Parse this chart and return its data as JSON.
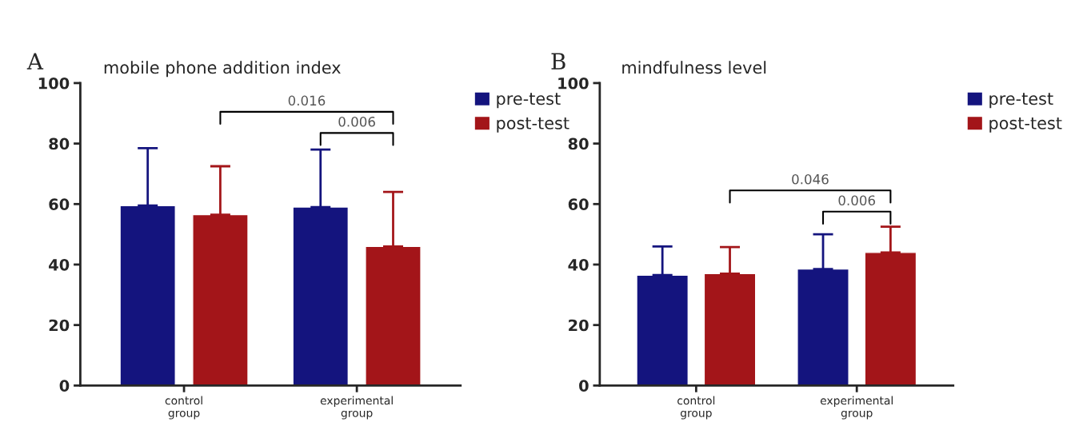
{
  "chart_data": [
    {
      "type": "bar",
      "title": "mobile phone addition index",
      "categories": [
        "control\ngroup",
        "experimental\ngroup"
      ],
      "ylim": [
        0,
        100
      ],
      "yticks": [
        0,
        20,
        40,
        60,
        80,
        100
      ],
      "legend": "top right",
      "grid": false,
      "series": [
        {
          "name": "pre-test",
          "color": "#14147e",
          "values": [
            59.5,
            59
          ],
          "errors": [
            [
              59.5,
              78.5
            ],
            [
              59,
              78
            ]
          ]
        },
        {
          "name": "post-test",
          "color": "#a31519",
          "values": [
            56.5,
            46
          ],
          "errors": [
            [
              56.5,
              72.5
            ],
            [
              46,
              64
            ]
          ]
        }
      ],
      "annotations": [
        "A",
        "0.016",
        "0.006"
      ]
    },
    {
      "type": "bar",
      "title": "mindfulness level",
      "categories": [
        "control\ngroup",
        "experimental\ngroup"
      ],
      "ylim": [
        0,
        100
      ],
      "yticks": [
        0,
        20,
        40,
        60,
        80,
        100
      ],
      "legend": "top right",
      "grid": false,
      "series": [
        {
          "name": "pre-test",
          "color": "#14147e",
          "values": [
            36.5,
            38.5
          ],
          "errors": [
            [
              36.5,
              46
            ],
            [
              38.5,
              50
            ]
          ]
        },
        {
          "name": "post-test",
          "color": "#a31519",
          "values": [
            37,
            44
          ],
          "errors": [
            [
              37,
              45.8
            ],
            [
              44,
              52.5
            ]
          ]
        }
      ],
      "annotations": [
        "B",
        "0.046",
        "0.006"
      ]
    }
  ]
}
